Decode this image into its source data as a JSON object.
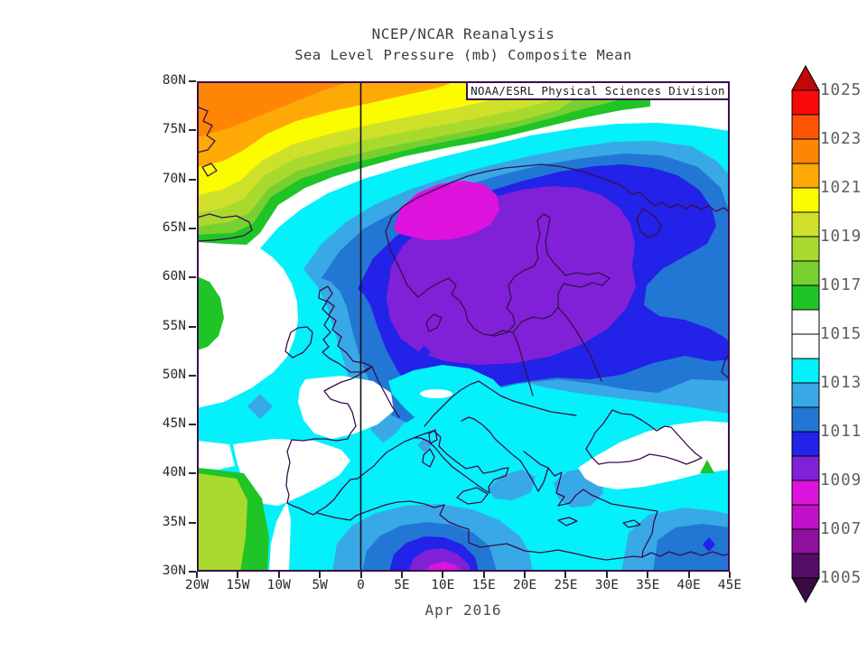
{
  "title": {
    "line1": "NCEP/NCAR Reanalysis",
    "line2": "Sea Level Pressure (mb) Composite Mean"
  },
  "attribution": "NOAA/ESRL Physical Sciences Division",
  "footer": "Apr 2016",
  "axes": {
    "x_ticks": [
      "20W",
      "15W",
      "10W",
      "5W",
      "0",
      "5E",
      "10E",
      "15E",
      "20E",
      "25E",
      "30E",
      "35E",
      "40E",
      "45E"
    ],
    "y_ticks": [
      "80N",
      "75N",
      "70N",
      "65N",
      "60N",
      "55N",
      "50N",
      "45N",
      "40N",
      "35N",
      "30N"
    ]
  },
  "colorbar": {
    "labels_top_to_bottom": [
      "1025",
      "1023",
      "1021",
      "1019",
      "1017",
      "1015",
      "1013",
      "1011",
      "1009",
      "1007",
      "1005"
    ],
    "cells_top_to_bottom": [
      "#f80a0a",
      "#fc5404",
      "#ff8605",
      "#ffa907",
      "#fcfc00",
      "#cfe02b",
      "#a8da2e",
      "#77d030",
      "#1fc426",
      "#ffffff",
      "#ffffff",
      "#04f0fa",
      "#38a9e6",
      "#2277d4",
      "#2222e8",
      "#8021d8",
      "#dd13dd",
      "#c011c9",
      "#90109e",
      "#540d66"
    ],
    "arrow_top_color": "#c00808",
    "arrow_bottom_color": "#3a0a42",
    "units": "mb"
  },
  "chart_data": {
    "type": "filled_contour_map",
    "title": "NCEP/NCAR Reanalysis",
    "subtitle": "Sea Level Pressure (mb) Composite Mean",
    "period_label": "Apr 2016",
    "attribution": "NOAA/ESRL Physical Sciences Division",
    "variable": "Sea Level Pressure",
    "units": "mb",
    "x_axis": {
      "label": "longitude",
      "range": [
        "20W",
        "45E"
      ],
      "ticks": [
        "20W",
        "15W",
        "10W",
        "5W",
        "0",
        "5E",
        "10E",
        "15E",
        "20E",
        "25E",
        "30E",
        "35E",
        "40E",
        "45E"
      ]
    },
    "y_axis": {
      "label": "latitude",
      "range": [
        "30N",
        "80N"
      ],
      "ticks": [
        "80N",
        "75N",
        "70N",
        "65N",
        "60N",
        "55N",
        "50N",
        "45N",
        "40N",
        "35N",
        "30N"
      ]
    },
    "contour_interval_mb": 1,
    "colorbar_range_mb": [
      1005,
      1025
    ],
    "colorbar_labels_mb": [
      1025,
      1023,
      1021,
      1019,
      1017,
      1015,
      1013,
      1011,
      1009,
      1007,
      1005
    ],
    "palette_mb_to_hex": [
      {
        "band": "1005-1006",
        "hex": "#540d66"
      },
      {
        "band": "1006-1007",
        "hex": "#90109e"
      },
      {
        "band": "1007-1008",
        "hex": "#c011c9"
      },
      {
        "band": "1008-1009",
        "hex": "#dd13dd"
      },
      {
        "band": "1009-1010",
        "hex": "#8021d8"
      },
      {
        "band": "1010-1011",
        "hex": "#2222e8"
      },
      {
        "band": "1011-1012",
        "hex": "#2277d4"
      },
      {
        "band": "1012-1013",
        "hex": "#38a9e6"
      },
      {
        "band": "1013-1014",
        "hex": "#04f0fa"
      },
      {
        "band": "1014-1015",
        "hex": "#ffffff"
      },
      {
        "band": "1015-1016",
        "hex": "#ffffff"
      },
      {
        "band": "1016-1017",
        "hex": "#1fc426"
      },
      {
        "band": "1017-1018",
        "hex": "#77d030"
      },
      {
        "band": "1018-1019",
        "hex": "#a8da2e"
      },
      {
        "band": "1019-1020",
        "hex": "#cfe02b"
      },
      {
        "band": "1020-1021",
        "hex": "#fcfc00"
      },
      {
        "band": "1021-1022",
        "hex": "#ffa907"
      },
      {
        "band": "1022-1023",
        "hex": "#ff8605"
      },
      {
        "band": "1023-1024",
        "hex": "#fc5404"
      },
      {
        "band": "1024-1025",
        "hex": "#f80a0a"
      }
    ],
    "features": [
      {
        "name": "primary-low",
        "approx_center": "8E 66.5N (Norwegian Sea / Scandinavia)",
        "min_mb": 1008
      },
      {
        "name": "secondary-low",
        "approx_center": "5E 29N (NW Africa, southern map edge)",
        "min_mb": 1007
      },
      {
        "name": "northwest-high",
        "approx_center": "beyond NW corner (Greenland side)",
        "max_mb": 1023
      },
      {
        "name": "southwest-ridge",
        "approx_center": "SW corner (Atlantic / Azores side)",
        "max_mb": 1019
      },
      {
        "name": "white-neutral-band",
        "value_mb": "1014-1016",
        "note": "diagonal band NW of low; France-Iberia; Turkey-Caucasus band"
      }
    ],
    "prime_meridian_line": "vertical black line at 0 longitude",
    "grid": false,
    "legend_position": "right vertical colorbar with end arrows"
  }
}
